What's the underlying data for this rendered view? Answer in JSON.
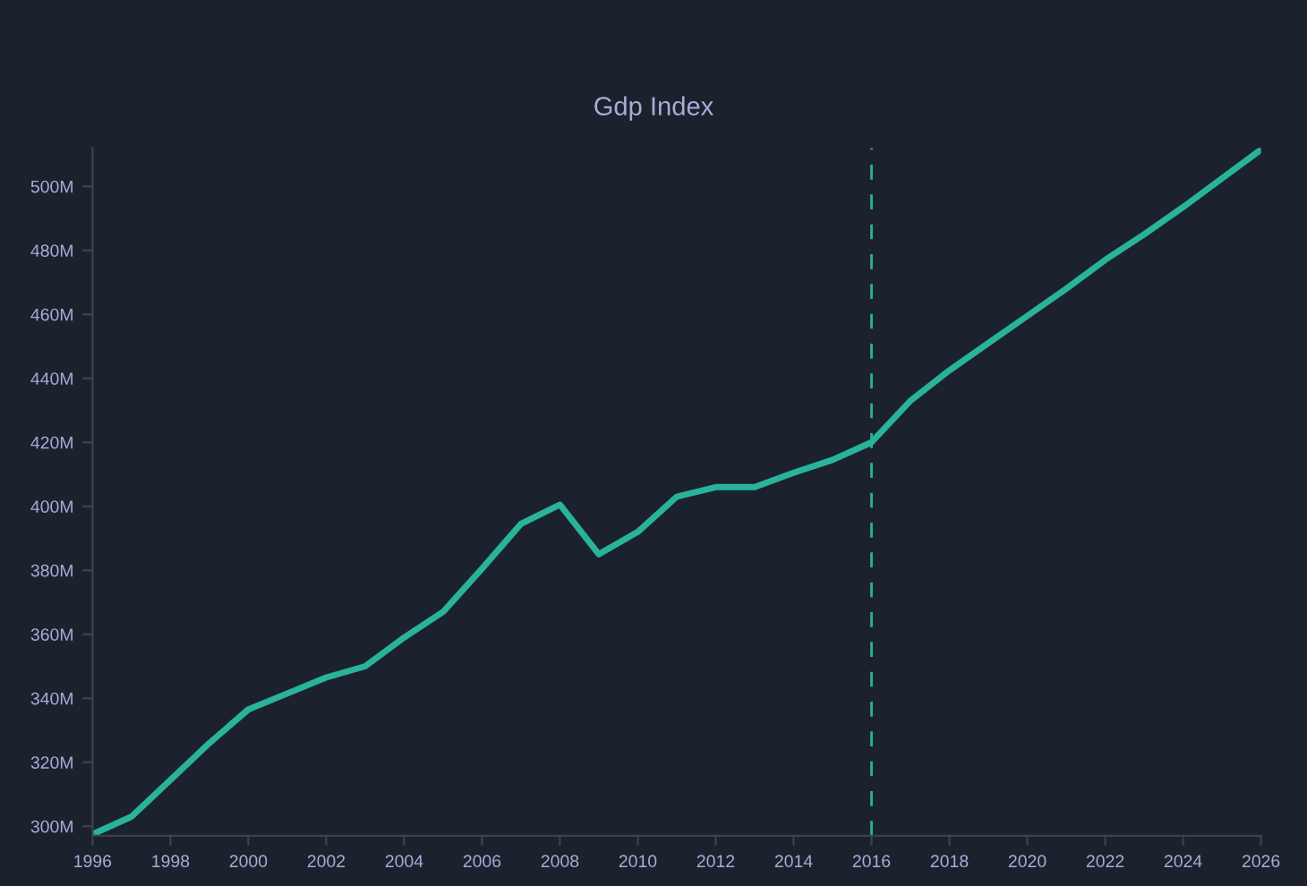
{
  "chart_data": {
    "type": "line",
    "title": "Gdp Index",
    "x": [
      1996,
      1997,
      1998,
      1999,
      2000,
      2001,
      2002,
      2003,
      2004,
      2005,
      2006,
      2007,
      2008,
      2009,
      2010,
      2011,
      2012,
      2013,
      2014,
      2015,
      2016,
      2017,
      2018,
      2019,
      2020,
      2021,
      2022,
      2023,
      2024,
      2025,
      2026
    ],
    "series": [
      {
        "color": "#2ab39b",
        "values": [
          297.5,
          303,
          314.5,
          326,
          336.5,
          341.5,
          346.5,
          350,
          359,
          367,
          380.5,
          394.5,
          400.5,
          385,
          392,
          403,
          406,
          406,
          410.5,
          414.5,
          420,
          433,
          442.5,
          451,
          459.5,
          468,
          477,
          485,
          493.5,
          502.5,
          511.5
        ]
      }
    ],
    "xlim": [
      1996,
      2026
    ],
    "ylim": [
      297,
      512
    ],
    "xticks": [
      1996,
      1998,
      2000,
      2002,
      2004,
      2006,
      2008,
      2010,
      2012,
      2014,
      2016,
      2018,
      2020,
      2022,
      2024,
      2026
    ],
    "yticks": [
      {
        "value": 300,
        "label": "300M"
      },
      {
        "value": 320,
        "label": "320M"
      },
      {
        "value": 340,
        "label": "340M"
      },
      {
        "value": 360,
        "label": "360M"
      },
      {
        "value": 380,
        "label": "380M"
      },
      {
        "value": 400,
        "label": "400M"
      },
      {
        "value": 420,
        "label": "420M"
      },
      {
        "value": 440,
        "label": "440M"
      },
      {
        "value": 460,
        "label": "460M"
      },
      {
        "value": 480,
        "label": "480M"
      },
      {
        "value": 500,
        "label": "500M"
      }
    ],
    "ref_lines": [
      {
        "axis": "x",
        "value": 2016,
        "color": "#2ab39b",
        "line_style": "dashed"
      }
    ],
    "grid": false,
    "legend": false,
    "line_style": "solid",
    "marker": "none"
  }
}
